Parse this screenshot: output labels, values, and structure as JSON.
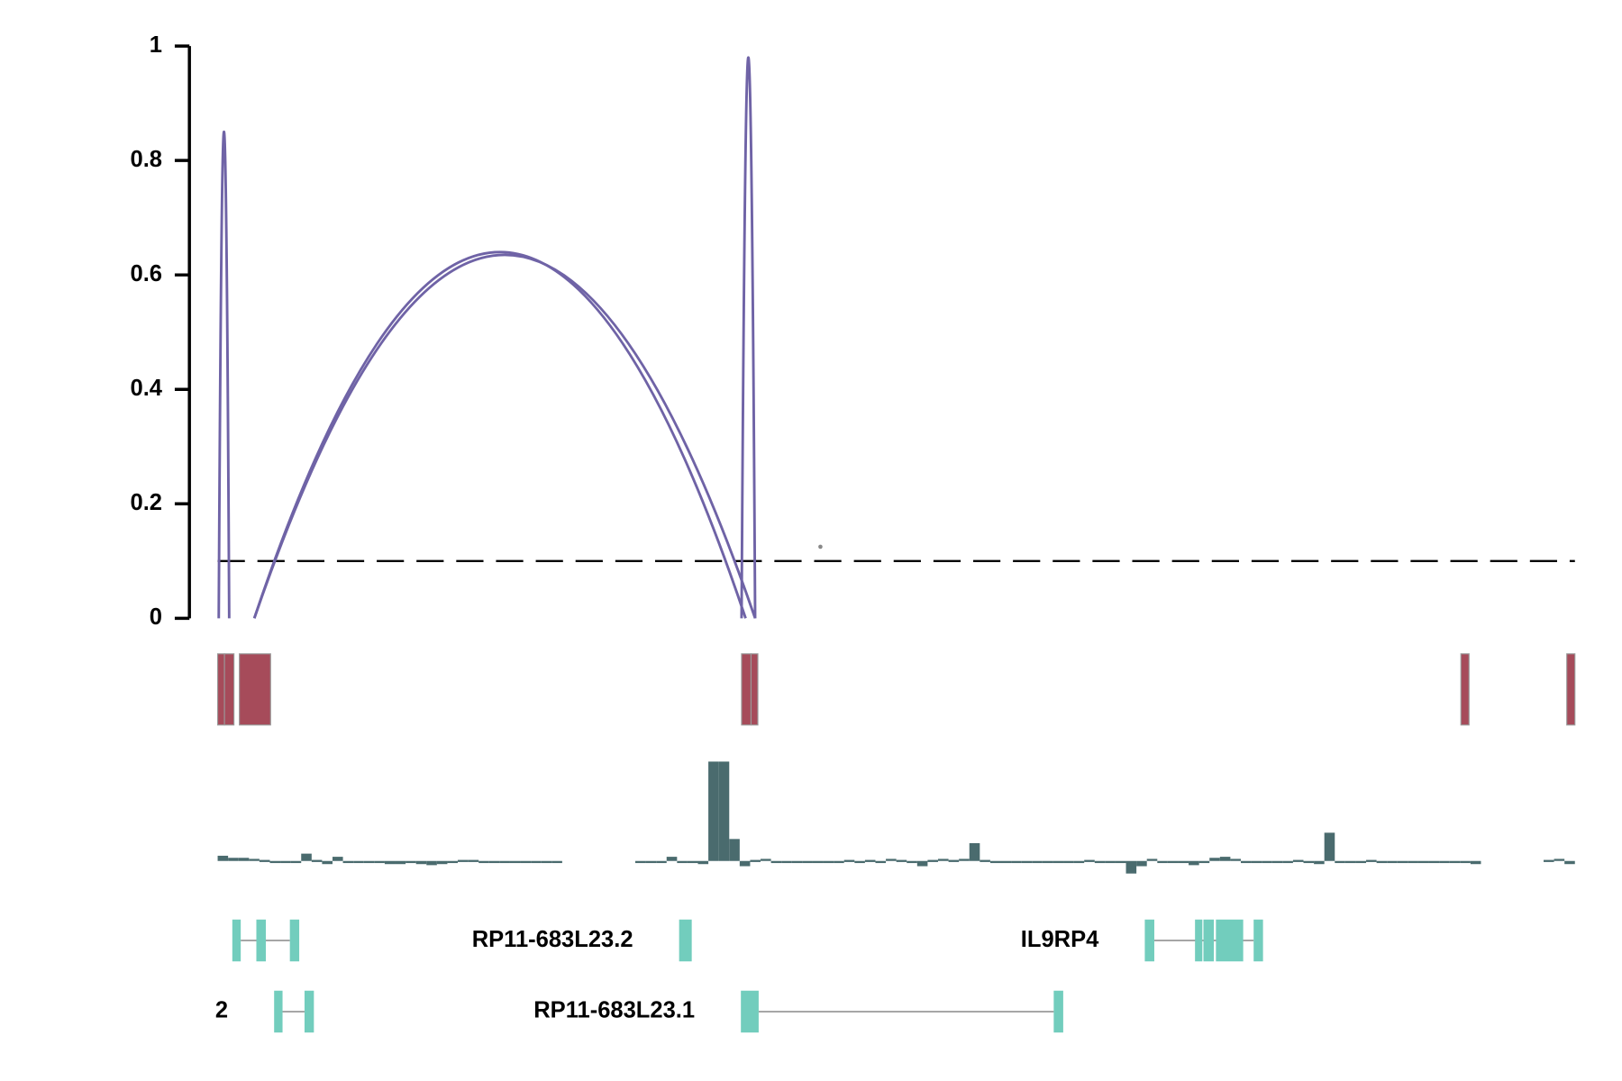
{
  "chart_data": {
    "type": "arc",
    "ylim": [
      0,
      1
    ],
    "yticks": [
      0,
      0.2,
      0.4,
      0.6,
      0.8,
      1
    ],
    "xlim": [
      0,
      100
    ],
    "threshold": 0.1,
    "color": "#6f63a6",
    "arcs": [
      {
        "start": 0.08,
        "end": 0.85,
        "height": 0.85
      },
      {
        "start": 2.7,
        "end": 38.9,
        "height": 0.64
      },
      {
        "start": 2.7,
        "end": 39.6,
        "height": 0.635
      },
      {
        "start": 38.6,
        "end": 39.6,
        "height": 0.98
      }
    ],
    "points": [
      {
        "x": 44.41,
        "y": 0.125
      }
    ]
  },
  "regions": {
    "color": "#a64b5a",
    "spans": [
      [
        0,
        0.5
      ],
      [
        0.5,
        1.2
      ],
      [
        1.6,
        3.9
      ],
      [
        38.6,
        39.3
      ],
      [
        39.3,
        39.8
      ],
      [
        91.6,
        92.2
      ],
      [
        99.4,
        100
      ]
    ]
  },
  "signal": {
    "color": "#4a6b6e",
    "values": [
      5,
      3,
      3,
      2,
      1,
      0,
      -1,
      -1,
      7,
      1,
      -3,
      4,
      -1,
      -2,
      -2,
      -2,
      -3,
      -3,
      -2,
      -3,
      -4,
      -3,
      -1,
      1,
      1,
      0,
      -1,
      -2,
      -1,
      -2,
      -2,
      -2,
      -2,
      null,
      null,
      null,
      null,
      null,
      null,
      null,
      0,
      -1,
      -1,
      4,
      -2,
      -2,
      -3,
      95,
      95,
      21,
      -5,
      1,
      2,
      0,
      -1,
      0,
      -1,
      -1,
      -1,
      0,
      1,
      0,
      1,
      0,
      2,
      1,
      0,
      -5,
      1,
      2,
      1,
      2,
      17,
      1,
      -1,
      -2,
      -1,
      0,
      -1,
      -2,
      0,
      -2,
      -1,
      1,
      -1,
      0,
      -2,
      -12,
      -5,
      2,
      -1,
      -2,
      0,
      -4,
      0,
      3,
      4,
      2,
      0,
      -1,
      0,
      -1,
      -2,
      1,
      -2,
      -3,
      27,
      0,
      -1,
      -2,
      1,
      -1,
      0,
      -1,
      -2,
      0,
      -2,
      -1,
      -1,
      -2,
      -3,
      null,
      null,
      null,
      null,
      null,
      null,
      1,
      2,
      -3
    ]
  },
  "genes": {
    "color": "#72cdbd",
    "rows": [
      [
        {
          "exons": [
            [
              1.08,
              1.7
            ],
            [
              2.85,
              3.55
            ],
            [
              5.32,
              6.01
            ]
          ]
        },
        {
          "name": "RP11-683L23.2",
          "exons": [
            [
              34.0,
              34.93
            ]
          ]
        },
        {
          "name": "IL9RP4",
          "exons": [
            [
              68.31,
              69.01
            ],
            [
              72.01,
              72.55
            ],
            [
              72.63,
              73.4
            ],
            [
              73.55,
              75.56
            ],
            [
              76.33,
              77.02
            ]
          ]
        }
      ],
      [
        {
          "name": "2",
          "exons": [
            [
              4.16,
              4.78
            ],
            [
              6.4,
              7.09
            ]
          ]
        },
        {
          "name": "RP11-683L23.1",
          "exons": [
            [
              38.55,
              39.86
            ],
            [
              61.6,
              62.3
            ]
          ]
        }
      ]
    ]
  }
}
